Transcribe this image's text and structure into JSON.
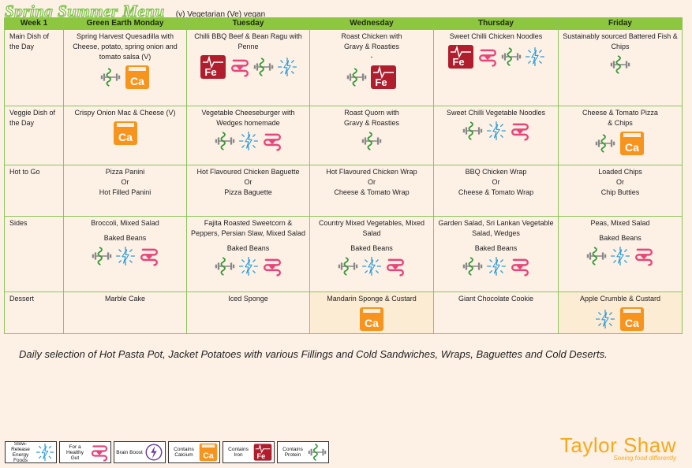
{
  "title": "Spring Summer Menu",
  "key_note": "(v) Vegetarian (Ve) vegan",
  "columns": [
    "Week 1",
    "Green Earth Monday",
    "Tuesday",
    "Wednesday",
    "Thursday",
    "Friday"
  ],
  "rows": [
    {
      "label": "Main Dish of the Day",
      "cells": [
        {
          "lines": [
            "Spring Harvest Quesadilla with Cheese, potato, spring onion and tomato salsa (V)"
          ],
          "icons": [
            "protein-icon",
            "calcium-icon"
          ]
        },
        {
          "lines": [
            "Chilli BBQ Beef & Bean Ragu with Penne"
          ],
          "icons": [
            "iron-icon",
            "gut-icon",
            "protein-icon",
            "energy-icon"
          ]
        },
        {
          "lines": [
            "Roast Chicken with",
            "Gravy & Roasties",
            "-"
          ],
          "icons": [
            "protein-icon",
            "iron-icon"
          ]
        },
        {
          "lines": [
            "Sweet Chilli Chicken Noodles"
          ],
          "icons": [
            "iron-icon",
            "gut-icon",
            "protein-icon",
            "energy-icon"
          ]
        },
        {
          "lines": [
            "Sustainably sourced Battered Fish & Chips"
          ],
          "icons": [
            "protein-icon"
          ]
        }
      ]
    },
    {
      "label": "Veggie Dish of the Day",
      "cells": [
        {
          "lines": [
            "Crispy Onion Mac & Cheese (V)"
          ],
          "icons": [
            "calcium-icon"
          ]
        },
        {
          "lines": [
            "Vegetable Cheeseburger with Wedges homemade"
          ],
          "icons": [
            "protein-icon",
            "energy-icon",
            "gut-icon"
          ]
        },
        {
          "lines": [
            "Roast Quorn with",
            "Gravy & Roasties"
          ],
          "icons": [
            "protein-icon"
          ]
        },
        {
          "lines": [
            "Sweet Chilli Vegetable Noodles"
          ],
          "icons": [
            "protein-icon",
            "energy-icon",
            "gut-icon"
          ]
        },
        {
          "lines": [
            "Cheese & Tomato Pizza",
            "& Chips"
          ],
          "icons": [
            "protein-icon",
            "calcium-icon"
          ]
        }
      ]
    },
    {
      "label": "Hot to Go",
      "cells": [
        {
          "lines": [
            "Pizza Panini",
            "Or",
            "Hot Filled Panini"
          ],
          "icons": []
        },
        {
          "lines": [
            "Hot Flavoured Chicken Baguette",
            "Or",
            "Pizza Baguette"
          ],
          "icons": []
        },
        {
          "lines": [
            "Hot Flavoured Chicken Wrap",
            "Or",
            "Cheese & Tomato Wrap"
          ],
          "icons": []
        },
        {
          "lines": [
            "BBQ Chicken Wrap",
            "Or",
            "Cheese & Tomato Wrap"
          ],
          "icons": []
        },
        {
          "lines": [
            "Loaded Chips",
            "Or",
            "Chip Butties"
          ],
          "icons": []
        }
      ]
    },
    {
      "label": "Sides",
      "cells": [
        {
          "lines": [
            "Broccoli, Mixed Salad",
            "",
            "Baked Beans"
          ],
          "icons": [
            "protein-icon",
            "energy-icon",
            "gut-icon"
          ]
        },
        {
          "lines": [
            "Fajita Roasted Sweetcorn & Peppers, Persian Slaw, Mixed Salad",
            "",
            "Baked Beans"
          ],
          "icons": [
            "protein-icon",
            "energy-icon",
            "gut-icon"
          ]
        },
        {
          "lines": [
            "Country Mixed Vegetables, Mixed Salad",
            "",
            "Baked Beans"
          ],
          "icons": [
            "protein-icon",
            "energy-icon",
            "gut-icon"
          ]
        },
        {
          "lines": [
            "Garden Salad, Sri Lankan Vegetable Salad, Wedges",
            "",
            "Baked Beans"
          ],
          "icons": [
            "protein-icon",
            "energy-icon",
            "gut-icon"
          ]
        },
        {
          "lines": [
            "Peas, Mixed Salad",
            "",
            "Baked Beans"
          ],
          "icons": [
            "protein-icon",
            "energy-icon",
            "gut-icon"
          ]
        }
      ]
    },
    {
      "label": "Dessert",
      "cells": [
        {
          "lines": [
            "Marble Cake"
          ],
          "icons": []
        },
        {
          "lines": [
            "Iced Sponge"
          ],
          "icons": []
        },
        {
          "lines": [
            "Mandarin Sponge & Custard"
          ],
          "icons": [
            "calcium-icon"
          ]
        },
        {
          "lines": [
            "Giant Chocolate Cookie"
          ],
          "icons": []
        },
        {
          "lines": [
            "Apple Crumble & Custard"
          ],
          "icons": [
            "energy-icon",
            "calcium-icon"
          ]
        }
      ]
    }
  ],
  "footer_note": "Daily selection of Hot Pasta Pot, Jacket Potatoes with various Fillings and Cold Sandwiches, Wraps, Baguettes and Cold Deserts.",
  "legend": [
    {
      "label": "Slow-Release Energy Foods",
      "icon": "energy-icon"
    },
    {
      "label": "For a Healthy Gut",
      "icon": "gut-icon"
    },
    {
      "label": "Brain Boost",
      "icon": "brain-icon"
    },
    {
      "label": "Contains Calcium",
      "icon": "calcium-icon"
    },
    {
      "label": "Contains Iron",
      "icon": "iron-icon"
    },
    {
      "label": "Contains Protein",
      "icon": "protein-icon"
    }
  ],
  "brand": {
    "name": "Taylor Shaw",
    "tagline": "Seeing food differently"
  },
  "colors": {
    "header": "#8dc63f",
    "border": "#8cc45a",
    "calcium": "#f7941d",
    "iron": "#b01e2e",
    "gut": "#e8457a",
    "energy": "#2e9bd6",
    "brain": "#6b3fa0",
    "protein": "#3a9a3a",
    "brand": "#f7a81b"
  }
}
